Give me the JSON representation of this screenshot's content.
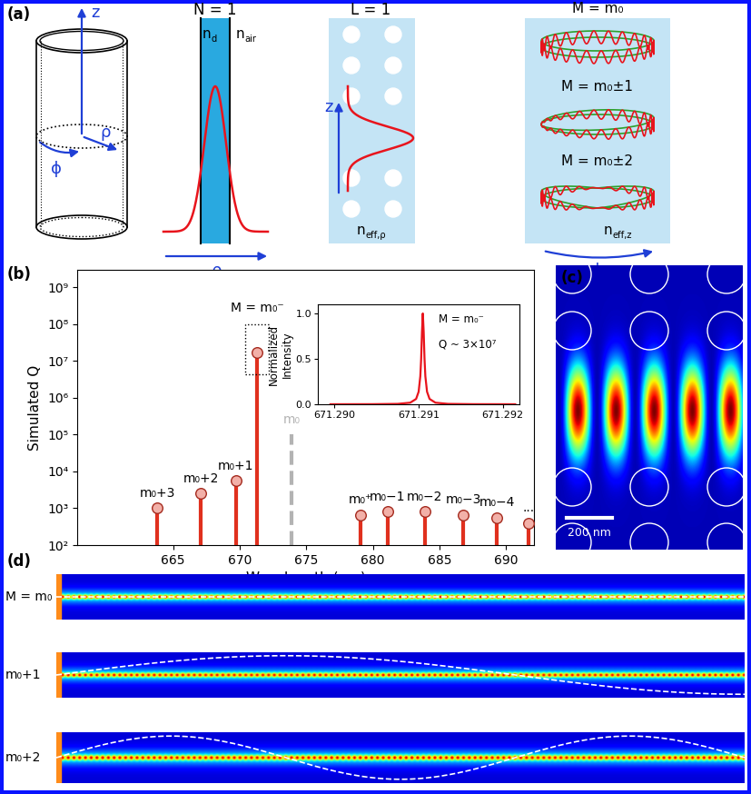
{
  "panel_a": {
    "label": "(a)",
    "cylinder_axes": {
      "z": "z",
      "rho": "ρ",
      "phi": "ϕ"
    },
    "N_panel": {
      "title": "N = 1",
      "axis": "ρ",
      "indices": [
        {
          "base": "n",
          "sub": "d"
        },
        {
          "base": "n",
          "sub": "air"
        }
      ]
    },
    "L_panel": {
      "title": "L = 1",
      "axis": "z",
      "index": {
        "base": "n",
        "sub": "eff,ρ"
      }
    },
    "M_panel": {
      "titles": [
        "M = m₀",
        "M = m₀±1",
        "M = m₀±2"
      ],
      "axis": "ϕ",
      "index": {
        "base": "n",
        "sub": "eff,z"
      }
    }
  },
  "chart_data": [
    {
      "type": "stem",
      "label": "(b)",
      "x_label": "Wavelength (nm)",
      "y_label": "Simulated Q",
      "log": "y",
      "xlim": [
        657.8,
        692.1
      ],
      "xticks": [
        665,
        670,
        675,
        680,
        685,
        690
      ],
      "ylim": [
        100,
        3000000000
      ],
      "yticks": [
        {
          "value": 100,
          "label": "10²"
        },
        {
          "value": 1000,
          "label": "10³"
        },
        {
          "value": 10000,
          "label": "10⁴"
        },
        {
          "value": 100000,
          "label": "10⁵"
        },
        {
          "value": 1000000,
          "label": "10⁶"
        },
        {
          "value": 10000000,
          "label": "10⁷"
        },
        {
          "value": 100000000,
          "label": "10⁸"
        },
        {
          "value": 1000000000,
          "label": "10⁹"
        }
      ],
      "series": [
        {
          "type": "stem",
          "color": "#e0301e",
          "marker": "o",
          "line_style": "solid",
          "x": [
            663.8,
            667.1,
            669.7,
            671.3,
            679.1,
            681.1,
            683.9,
            686.8,
            689.3,
            691.7
          ],
          "values": [
            1000,
            2500,
            5500,
            17000000,
            650,
            800,
            800,
            650,
            550,
            400
          ],
          "point_labels": [
            "m₀+3",
            "m₀+2",
            "m₀+1",
            "M = m₀⁻",
            "m₀⁺",
            "m₀−1",
            "m₀−2",
            "m₀−3",
            "m₀−4",
            "..."
          ]
        },
        {
          "type": "stem",
          "color": "#b3b3b3",
          "marker": "none",
          "line_style": "dashed",
          "x": [
            673.9
          ],
          "values": [
            100000
          ],
          "point_labels": [
            "m₀"
          ]
        }
      ]
    },
    {
      "type": "line",
      "y_label": "Normalized\nIntensity",
      "color": "#e8141c",
      "x": [
        671.28995,
        671.29045,
        671.29075,
        671.2909,
        671.29097,
        671.291,
        671.29102,
        671.29103,
        671.29104,
        671.29105,
        671.29106,
        671.29107,
        671.29108,
        671.2911,
        671.29113,
        671.2912,
        671.29135,
        671.29165,
        671.29215
      ],
      "values": [
        0.0003,
        0.0011,
        0.0044,
        0.0175,
        0.0588,
        0.138,
        0.308,
        0.5,
        0.8,
        1.0,
        0.8,
        0.5,
        0.308,
        0.138,
        0.0588,
        0.0175,
        0.0044,
        0.0011,
        0.0003
      ],
      "xlim": [
        671.2898,
        671.2922
      ],
      "xticks": [
        {
          "value": 671.29,
          "label": "671.290"
        },
        {
          "value": 671.291,
          "label": "671.291"
        },
        {
          "value": 671.292,
          "label": "671.292"
        }
      ],
      "ylim": [
        0,
        1.1
      ],
      "yticks": [
        {
          "value": 0,
          "label": "0.0"
        },
        {
          "value": 0.5,
          "label": "0.5"
        },
        {
          "value": 1,
          "label": "1.0"
        }
      ],
      "annotations": [
        "M = m₀⁻",
        "Q ~ 3×10⁷"
      ]
    }
  ],
  "panel_c": {
    "label": "(c)",
    "scale_bar": "200 nm"
  },
  "panel_d": {
    "label": "(d)",
    "rows": [
      "M = m₀",
      "m₀+1",
      "m₀+2"
    ]
  }
}
